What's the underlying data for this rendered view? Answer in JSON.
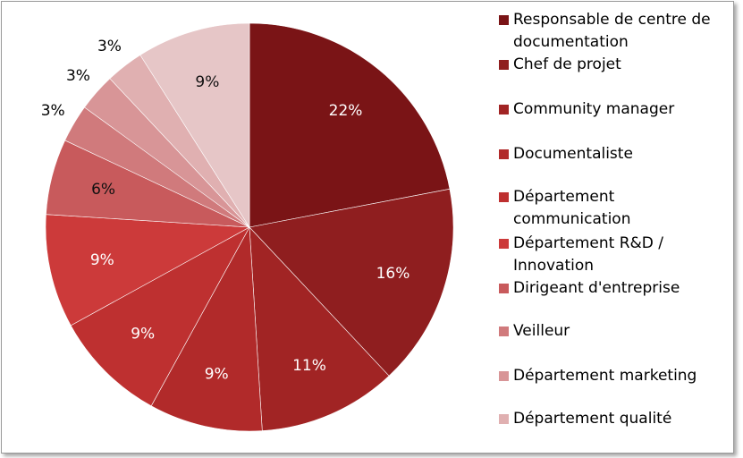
{
  "chart_data": {
    "type": "pie",
    "categories": [
      "Responsable de centre de documentation",
      "Chef de projet",
      "Community manager",
      "Documentaliste",
      "Département communication",
      "Département R&D / Innovation",
      "Dirigeant d'entreprise",
      "Veilleur",
      "Département marketing",
      "Département qualité",
      null
    ],
    "values": [
      22,
      16,
      11,
      9,
      9,
      9,
      6,
      3,
      3,
      3,
      9
    ],
    "value_labels": [
      "22%",
      "16%",
      "11%",
      "9%",
      "9%",
      "9%",
      "6%",
      "3%",
      "3%",
      "3%",
      "9%"
    ],
    "colors": [
      "#7a1416",
      "#8f1e1f",
      "#a12424",
      "#b12a2a",
      "#be3030",
      "#cc3a3a",
      "#c85a5c",
      "#d07a7c",
      "#d89597",
      "#e0b0b1",
      "#e6c6c7"
    ],
    "legend_position": "right"
  }
}
